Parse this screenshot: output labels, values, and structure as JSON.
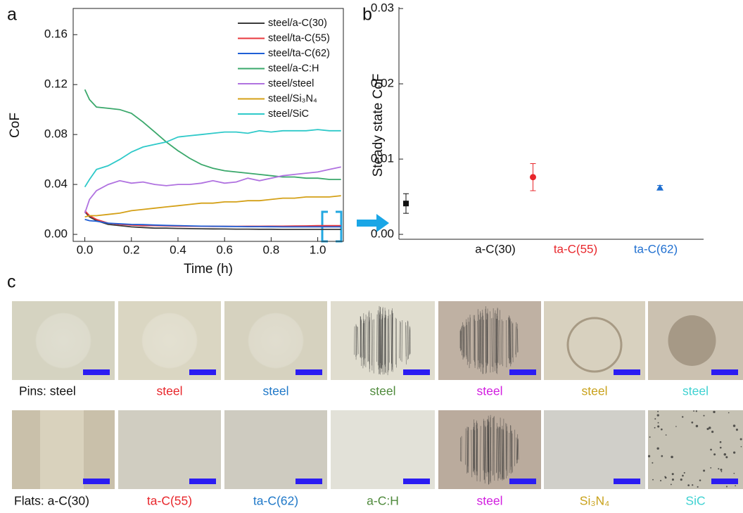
{
  "chart_data": [
    {
      "type": "line",
      "panel": "a",
      "xlabel": "Time (h)",
      "ylabel": "CoF",
      "xlim": [
        -0.05,
        1.11
      ],
      "ylim": [
        -0.0056,
        0.181
      ],
      "xticks": [
        {
          "value": 0,
          "label": "0.0"
        },
        0.2,
        0.4,
        0.6,
        0.8,
        {
          "value": 1,
          "label": "1.0"
        }
      ],
      "yticks": [
        {
          "value": 0,
          "label": "0.00"
        },
        0.04,
        0.08,
        0.12,
        0.16
      ],
      "x": [
        0,
        0.02,
        0.05,
        0.1,
        0.15,
        0.2,
        0.25,
        0.3,
        0.35,
        0.4,
        0.45,
        0.5,
        0.55,
        0.6,
        0.65,
        0.7,
        0.75,
        0.8,
        0.85,
        0.9,
        0.95,
        1.0,
        1.05,
        1.1
      ],
      "series": [
        {
          "name": "steel/a-C(30)",
          "color": "#3a3a3a",
          "values": [
            0.018,
            0.014,
            0.011,
            0.008,
            0.007,
            0.006,
            0.0055,
            0.005,
            0.005,
            0.0048,
            0.0046,
            0.0045,
            0.0044,
            0.0043,
            0.0042,
            0.0042,
            0.0041,
            0.0041,
            0.004,
            0.004,
            0.004,
            0.004,
            0.004,
            0.004
          ]
        },
        {
          "name": "steel/ta-C(55)",
          "color": "#e8383d",
          "values": [
            0.019,
            0.015,
            0.012,
            0.009,
            0.008,
            0.0075,
            0.007,
            0.007,
            0.0068,
            0.0066,
            0.0065,
            0.0065,
            0.0064,
            0.0064,
            0.0064,
            0.0065,
            0.0065,
            0.0066,
            0.0066,
            0.0067,
            0.0068,
            0.007,
            0.007,
            0.007
          ]
        },
        {
          "name": "steel/ta-C(62)",
          "color": "#1f5fd6",
          "values": [
            0.012,
            0.011,
            0.0105,
            0.009,
            0.0085,
            0.008,
            0.0078,
            0.0075,
            0.0072,
            0.007,
            0.0068,
            0.0066,
            0.0065,
            0.0064,
            0.0063,
            0.0062,
            0.0062,
            0.0061,
            0.006,
            0.006,
            0.006,
            0.006,
            0.006,
            0.006
          ]
        },
        {
          "name": "steel/a-C:H",
          "color": "#3aa86b",
          "values": [
            0.116,
            0.108,
            0.102,
            0.101,
            0.1,
            0.097,
            0.09,
            0.082,
            0.074,
            0.067,
            0.061,
            0.056,
            0.053,
            0.051,
            0.05,
            0.049,
            0.048,
            0.047,
            0.046,
            0.046,
            0.045,
            0.045,
            0.044,
            0.044
          ]
        },
        {
          "name": "steel/steel",
          "color": "#b072e0",
          "values": [
            0.017,
            0.028,
            0.035,
            0.04,
            0.043,
            0.041,
            0.042,
            0.04,
            0.039,
            0.04,
            0.04,
            0.041,
            0.043,
            0.041,
            0.042,
            0.045,
            0.043,
            0.045,
            0.047,
            0.048,
            0.049,
            0.05,
            0.052,
            0.054
          ]
        },
        {
          "name": "steel/Si₃N₄",
          "color": "#d4a017",
          "values": [
            0.014,
            0.015,
            0.015,
            0.016,
            0.017,
            0.019,
            0.02,
            0.021,
            0.022,
            0.023,
            0.024,
            0.025,
            0.025,
            0.026,
            0.026,
            0.027,
            0.027,
            0.028,
            0.029,
            0.029,
            0.03,
            0.03,
            0.03,
            0.031
          ]
        },
        {
          "name": "steel/SiC",
          "color": "#2ec9c9",
          "values": [
            0.038,
            0.044,
            0.052,
            0.055,
            0.06,
            0.066,
            0.07,
            0.072,
            0.074,
            0.078,
            0.079,
            0.08,
            0.081,
            0.082,
            0.082,
            0.081,
            0.083,
            0.082,
            0.083,
            0.083,
            0.083,
            0.084,
            0.083,
            0.083
          ]
        }
      ]
    },
    {
      "type": "errorbar",
      "panel": "b",
      "ylabel": "Steady state CoF",
      "ylim": [
        -0.00065,
        0.0302
      ],
      "yticks": [
        {
          "value": 0,
          "label": "0.00"
        },
        0.01,
        0.02,
        0.03
      ],
      "categories": [
        "a-C(30)",
        "ta-C(55)",
        "ta-C(62)"
      ],
      "values": [
        0.0041,
        0.0076,
        0.0062
      ],
      "errors": [
        0.0013,
        0.0018,
        0.0003
      ],
      "colors": [
        "#111111",
        "#e8262b",
        "#1f6fd0"
      ],
      "markers": [
        "square",
        "circle",
        "triangle"
      ]
    }
  ],
  "panel_c": {
    "panel": "c",
    "rows": [
      {
        "labels": [
          "Pins: steel",
          "steel",
          "steel",
          "steel",
          "steel",
          "steel",
          "steel"
        ]
      },
      {
        "labels": [
          "Flats: a-C(30)",
          "ta-C(55)",
          "ta-C(62)",
          "a-C:H",
          "steel",
          "Si₃N₄",
          "SiC"
        ]
      }
    ],
    "colors": [
      "#111111",
      "#e8262b",
      "#1f78c8",
      "#4f8a3c",
      "#d21ee0",
      "#c9a21c",
      "#40d2d2"
    ]
  }
}
